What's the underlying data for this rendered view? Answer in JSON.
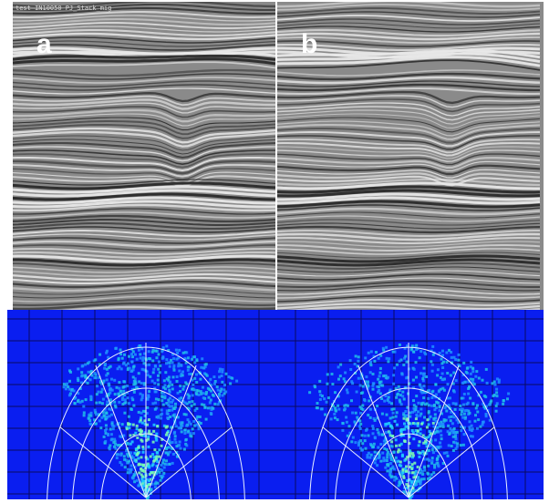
{
  "panels": [
    {
      "label": "a",
      "header": "test IN10050 PJ_Stack_mig"
    },
    {
      "label": "b"
    }
  ]
}
